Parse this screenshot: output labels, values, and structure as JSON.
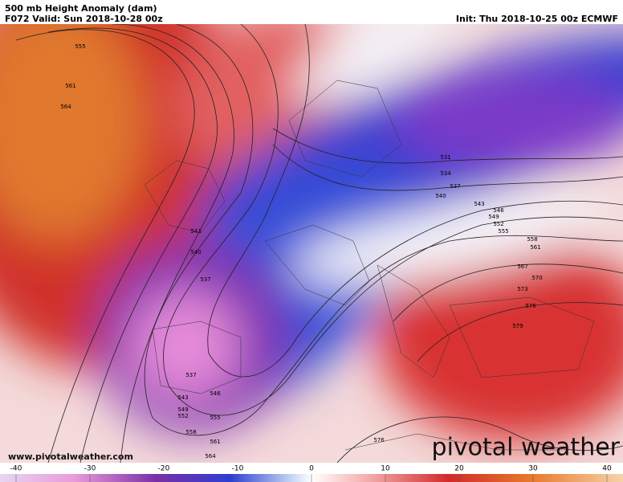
{
  "header": {
    "title": "500 mb Height Anomaly (dam)",
    "valid": "F072 Valid: Sun 2018-10-28 00z",
    "init": "Init: Thu 2018-10-25 00z ECMWF"
  },
  "contour_labels": [
    "555",
    "561",
    "564",
    "543",
    "540",
    "537",
    "537",
    "543",
    "546",
    "549",
    "552",
    "555",
    "558",
    "561",
    "564",
    "531",
    "534",
    "537",
    "540",
    "543",
    "546",
    "549",
    "552",
    "555",
    "558",
    "561",
    "567",
    "570",
    "573",
    "576",
    "579",
    "576"
  ],
  "footer": {
    "url": "www.pivotalweather.com",
    "brand": "pivotal weather"
  },
  "colorbar": {
    "ticks": [
      -40,
      -30,
      -20,
      -10,
      0,
      10,
      20,
      30,
      40
    ]
  }
}
